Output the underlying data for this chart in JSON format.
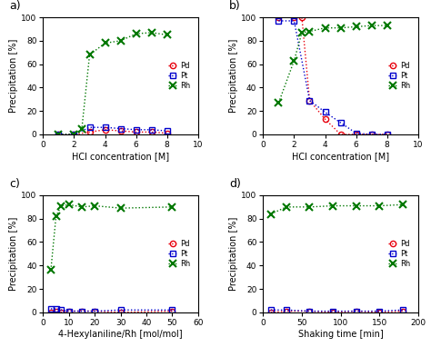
{
  "panel_a": {
    "Pd_x": [
      1,
      2,
      3,
      4,
      5,
      6,
      7,
      8
    ],
    "Pd_y": [
      0,
      0,
      2,
      4,
      3,
      2,
      2,
      1
    ],
    "Pt_x": [
      1,
      2,
      3,
      4,
      5,
      6,
      7,
      8
    ],
    "Pt_y": [
      0,
      0,
      6,
      6,
      5,
      4,
      4,
      3
    ],
    "Rh_x": [
      1,
      2,
      2.5,
      3,
      4,
      5,
      6,
      7,
      8
    ],
    "Rh_y": [
      0,
      0,
      5,
      68,
      78,
      80,
      86,
      87,
      85
    ],
    "xlabel": "HCl concentration [M]",
    "xlim": [
      0,
      10
    ],
    "xticks": [
      0,
      2,
      4,
      6,
      8,
      10
    ]
  },
  "panel_b": {
    "Pd_x": [
      1,
      2,
      2.5,
      3,
      4,
      5,
      6,
      7,
      8
    ],
    "Pd_y": [
      100,
      100,
      100,
      29,
      13,
      0,
      0,
      0,
      0
    ],
    "Pt_x": [
      1,
      2,
      3,
      4,
      5,
      6,
      7,
      8
    ],
    "Pt_y": [
      97,
      97,
      29,
      19,
      10,
      1,
      0,
      0
    ],
    "Rh_x": [
      1,
      2,
      2.5,
      3,
      4,
      5,
      6,
      7,
      8
    ],
    "Rh_y": [
      27,
      63,
      87,
      88,
      91,
      91,
      92,
      93,
      93
    ],
    "xlabel": "HCl concentration [M]",
    "xlim": [
      0,
      10
    ],
    "xticks": [
      0,
      2,
      4,
      6,
      8,
      10
    ]
  },
  "panel_c": {
    "Pd_x": [
      3,
      5,
      7,
      10,
      15,
      20,
      30,
      50
    ],
    "Pd_y": [
      0,
      1,
      0,
      1,
      1,
      1,
      0,
      1
    ],
    "Pt_x": [
      3,
      5,
      7,
      10,
      15,
      20,
      30,
      50
    ],
    "Pt_y": [
      3,
      3,
      2,
      1,
      1,
      1,
      2,
      2
    ],
    "Rh_x": [
      3,
      5,
      7,
      10,
      15,
      20,
      30,
      50
    ],
    "Rh_y": [
      36,
      82,
      91,
      92,
      90,
      91,
      89,
      90
    ],
    "xlabel": "4-Hexylaniline/Rh [mol/mol]",
    "xlim": [
      0,
      60
    ],
    "xticks": [
      0,
      10,
      20,
      30,
      40,
      50,
      60
    ]
  },
  "panel_d": {
    "Pd_x": [
      10,
      30,
      60,
      90,
      120,
      150,
      180
    ],
    "Pd_y": [
      0,
      1,
      1,
      0,
      1,
      0,
      1
    ],
    "Pt_x": [
      10,
      30,
      60,
      90,
      120,
      150,
      180
    ],
    "Pt_y": [
      2,
      2,
      1,
      1,
      1,
      1,
      2
    ],
    "Rh_x": [
      10,
      30,
      60,
      90,
      120,
      150,
      180
    ],
    "Rh_y": [
      84,
      90,
      90,
      91,
      91,
      91,
      92
    ],
    "xlabel": "Shaking time [min]",
    "xlim": [
      0,
      200
    ],
    "xticks": [
      0,
      50,
      100,
      150,
      200
    ]
  },
  "ylabel": "Precipitation [%]",
  "ylim": [
    0,
    100
  ],
  "yticks": [
    0,
    20,
    40,
    60,
    80,
    100
  ],
  "Pd_color": "#e8000d",
  "Pt_color": "#0000cc",
  "Rh_color": "#007700",
  "bg_color": "#ffffff",
  "labels": [
    "a)",
    "b)",
    "c)",
    "d)"
  ]
}
